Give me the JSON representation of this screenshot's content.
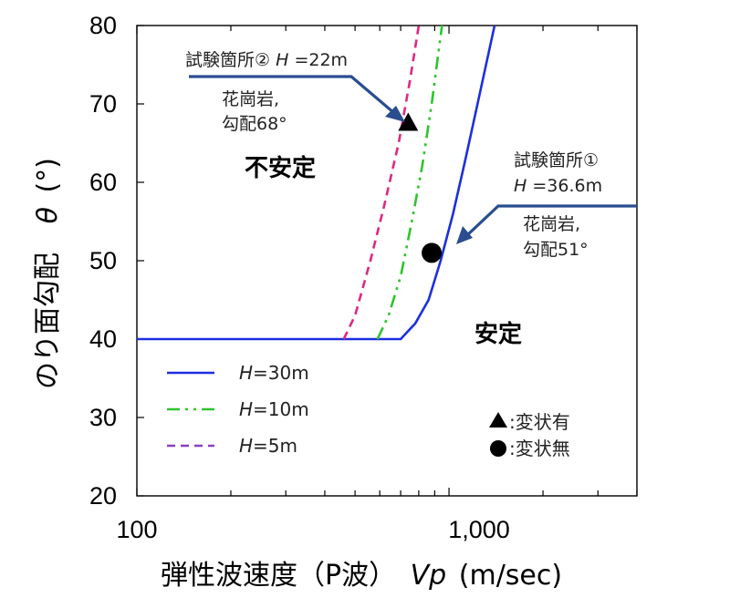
{
  "chart_data": {
    "type": "line",
    "x_scale": "log",
    "xlim": [
      100,
      4000
    ],
    "ylim": [
      20,
      80
    ],
    "grid": false,
    "xlabel": {
      "main": "弾性波速度（P波）",
      "var": "Vp",
      "unit": "(m/sec)"
    },
    "ylabel": {
      "main": "のり面勾配",
      "var": "θ",
      "unit": "(°)"
    },
    "y_ticks": [
      "20",
      "30",
      "40",
      "50",
      "60",
      "70",
      "80"
    ],
    "x_ticks": [
      "100",
      "1,000"
    ],
    "series": [
      {
        "name": "H=30m",
        "var": "H",
        "label": "=30m",
        "color": "#1c2fe0",
        "style": "solid",
        "x": [
          100,
          700,
          780,
          860,
          940,
          1030,
          1130,
          1250,
          1400
        ],
        "y": [
          40,
          40,
          42,
          45,
          50,
          56,
          63,
          71,
          80
        ]
      },
      {
        "name": "H=10m",
        "var": "H",
        "label": "=10m",
        "color": "#2ec42e",
        "style": "dashdotdot",
        "x": [
          590,
          640,
          700,
          760,
          820,
          880,
          950
        ],
        "y": [
          40,
          43,
          48,
          55,
          62,
          70,
          80
        ]
      },
      {
        "name": "H=5m",
        "var": "H",
        "label": "=5m",
        "color": "#e0287f",
        "legend_color": "#8a3fc0",
        "style": "dashed",
        "x": [
          460,
          500,
          560,
          620,
          690,
          750,
          800
        ],
        "y": [
          40,
          43,
          50,
          57,
          65,
          73,
          80
        ]
      }
    ],
    "points": [
      {
        "marker": "triangle",
        "x": 740,
        "y": 67.5
      },
      {
        "marker": "circle",
        "x": 880,
        "y": 51
      }
    ],
    "legend_symbols": [
      {
        "marker": "triangle",
        "label": ":変状有"
      },
      {
        "marker": "circle",
        "label": ":変状無"
      }
    ],
    "regions": {
      "unstable": "不安定",
      "stable": "安定"
    },
    "annotations": {
      "site2": {
        "title_a": "試験箇所②",
        "var": "H",
        "title_b": "=22m",
        "line1": "花崗岩,",
        "line2": "勾配68°"
      },
      "site1": {
        "title": "試験箇所①",
        "var": "H",
        "eq": "=36.6m",
        "line1": "花崗岩,",
        "line2": "勾配51°"
      }
    },
    "arrow_color": "#2a4d8f"
  }
}
